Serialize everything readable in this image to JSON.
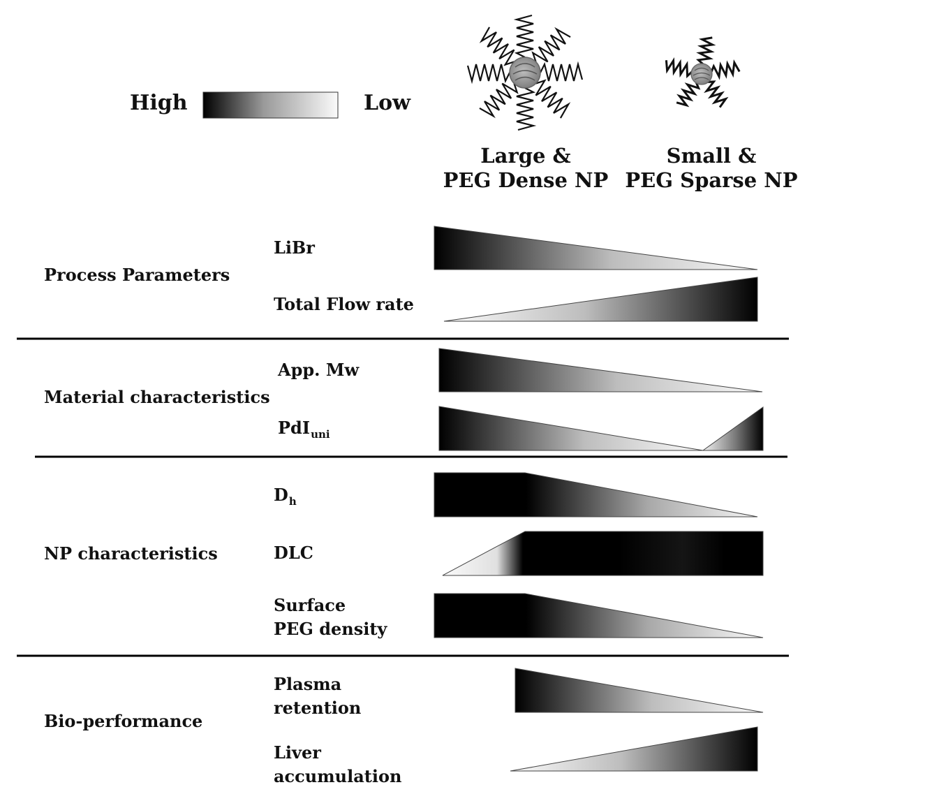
{
  "legend": {
    "high_label": "High",
    "low_label": "Low",
    "gradient_colors": [
      "#000000",
      "#ffffff"
    ]
  },
  "columns": [
    {
      "line1": "Large &",
      "line2": "PEG Dense NP",
      "icon": "large-peg-dense-nanoparticle-icon"
    },
    {
      "line1": "Small &",
      "line2": "PEG Sparse NP",
      "icon": "small-peg-sparse-nanoparticle-icon"
    }
  ],
  "groups": [
    {
      "label": "Process Parameters"
    },
    {
      "label": "Material characteristics"
    },
    {
      "label": "NP characteristics"
    },
    {
      "label": "Bio-performance"
    }
  ],
  "params": [
    {
      "line1": "LiBr",
      "line2": ""
    },
    {
      "line1": "Total Flow rate",
      "line2": ""
    },
    {
      "line1": "App. Mw",
      "line2": ""
    },
    {
      "line1": "PdI",
      "sub": "uni"
    },
    {
      "line1": "D",
      "sub": "h"
    },
    {
      "line1": "DLC",
      "line2": ""
    },
    {
      "line1": "Surface",
      "line2": "PEG density"
    },
    {
      "line1": "Plasma",
      "line2": "retention"
    },
    {
      "line1": "Liver",
      "line2": "accumulation"
    }
  ]
}
